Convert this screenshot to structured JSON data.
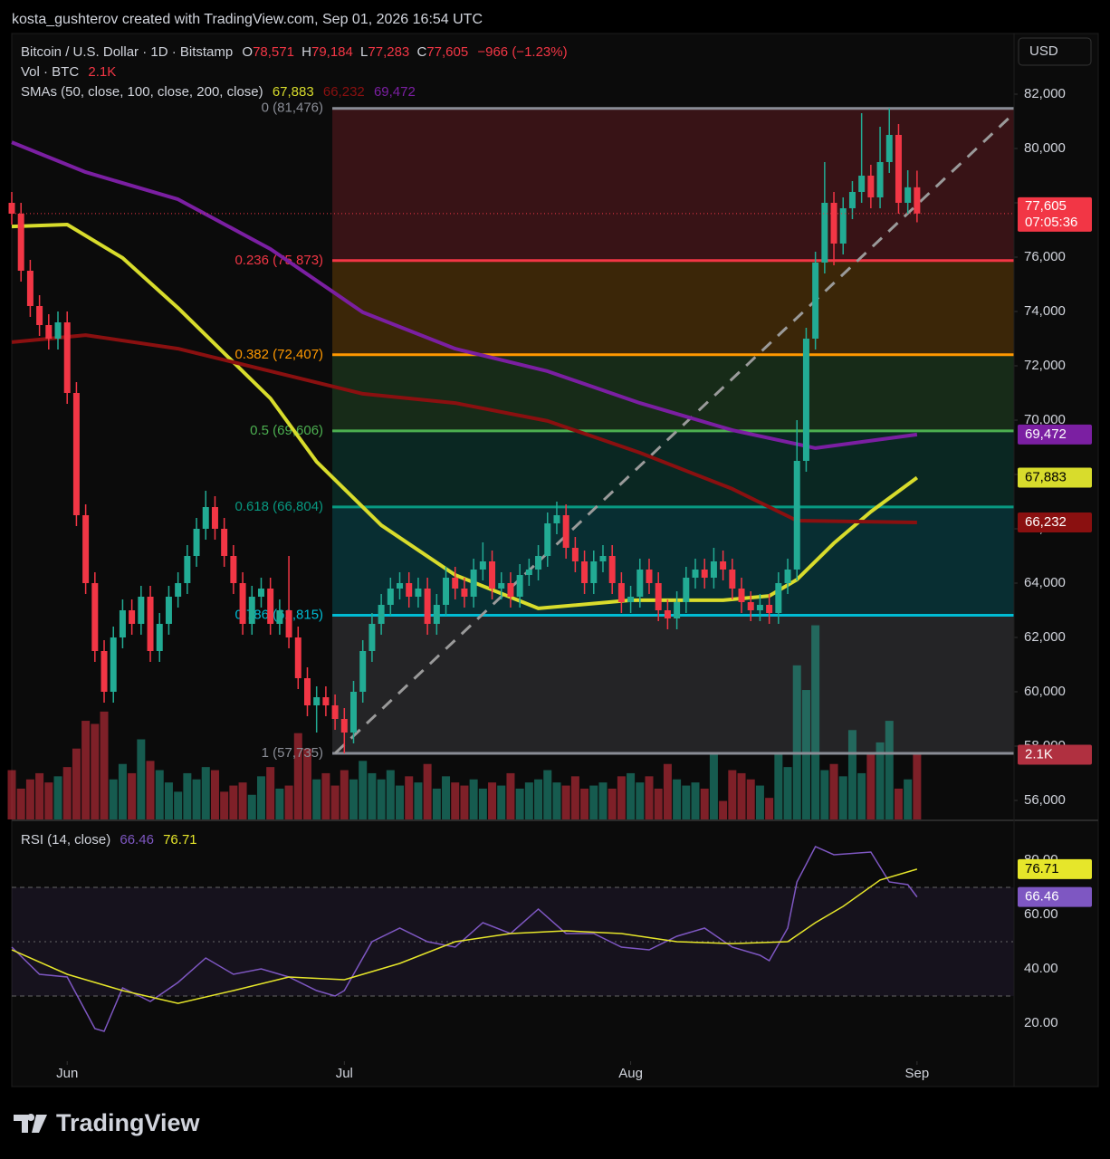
{
  "watermark": "kosta_gushterov created with TradingView.com, Sep 01, 2026 16:54 UTC",
  "brand": "TradingView",
  "chart_data": {
    "type": "candlestick",
    "title": "Bitcoin / U.S. Dollar · 1D · Bitstamp",
    "ohlc_legend": [
      {
        "key": "O",
        "text": "78,571"
      },
      {
        "key": "H",
        "text": "79,184"
      },
      {
        "key": "L",
        "text": "77,283"
      },
      {
        "key": "C",
        "text": "77,605"
      }
    ],
    "change": "−966 (−1.23%)",
    "currency": "USD",
    "countdown": "07:05:36",
    "up_color": "#22ab94",
    "down_color": "#f23645",
    "xlim": [
      0,
      108.5
    ],
    "xticks": [
      {
        "value": 6,
        "label": "Jun"
      },
      {
        "value": 36,
        "label": "Jul"
      },
      {
        "value": 67,
        "label": "Aug"
      },
      {
        "value": 98,
        "label": "Sep"
      }
    ],
    "ylim": [
      55300,
      84233
    ],
    "yticks": [
      {
        "value": 56000,
        "label": "56,000"
      },
      {
        "value": 58000,
        "label": "58,000"
      },
      {
        "value": 60000,
        "label": "60,000"
      },
      {
        "value": 62000,
        "label": "62,000"
      },
      {
        "value": 64000,
        "label": "64,000"
      },
      {
        "value": 66000,
        "label": "66,000"
      },
      {
        "value": 68000,
        "label": "68,000"
      },
      {
        "value": 70000,
        "label": "70,000"
      },
      {
        "value": 72000,
        "label": "72,000"
      },
      {
        "value": 74000,
        "label": "74,000"
      },
      {
        "value": 76000,
        "label": "76,000"
      },
      {
        "value": 78000,
        "label": "78,000"
      },
      {
        "value": 80000,
        "label": "80,000"
      },
      {
        "value": 82000,
        "label": "82,000"
      }
    ],
    "candles": [
      [
        78000,
        78400,
        77200,
        77600
      ],
      [
        77600,
        78000,
        75100,
        75500
      ],
      [
        75500,
        75900,
        73800,
        74200
      ],
      [
        74200,
        74600,
        73100,
        73500
      ],
      [
        73500,
        73900,
        72600,
        73000
      ],
      [
        73000,
        74000,
        72600,
        73600
      ],
      [
        73600,
        74000,
        70600,
        71000
      ],
      [
        71000,
        71400,
        66100,
        66500
      ],
      [
        66500,
        66900,
        63600,
        64000
      ],
      [
        64000,
        64400,
        61100,
        61500
      ],
      [
        61500,
        61900,
        59600,
        60000
      ],
      [
        60000,
        62400,
        59600,
        62000
      ],
      [
        62000,
        63400,
        61600,
        63000
      ],
      [
        63000,
        63400,
        62100,
        62500
      ],
      [
        62500,
        63900,
        62100,
        63500
      ],
      [
        63500,
        63900,
        61100,
        61500
      ],
      [
        61500,
        62900,
        61100,
        62500
      ],
      [
        62500,
        63900,
        62100,
        63500
      ],
      [
        63500,
        64400,
        63100,
        64000
      ],
      [
        64000,
        65400,
        63600,
        65000
      ],
      [
        65000,
        66400,
        64600,
        66000
      ],
      [
        66000,
        67400,
        65600,
        66800
      ],
      [
        66800,
        67200,
        65600,
        66000
      ],
      [
        66000,
        66400,
        64600,
        65000
      ],
      [
        65000,
        65400,
        63600,
        64000
      ],
      [
        64000,
        64400,
        62100,
        62500
      ],
      [
        62500,
        63900,
        62100,
        63500
      ],
      [
        63500,
        64200,
        63100,
        63800
      ],
      [
        63800,
        64200,
        62100,
        62500
      ],
      [
        62500,
        63400,
        62100,
        63000
      ],
      [
        63000,
        65000,
        61600,
        62000
      ],
      [
        62000,
        62400,
        60100,
        60500
      ],
      [
        60500,
        60900,
        59100,
        59500
      ],
      [
        59500,
        60200,
        58500,
        59800
      ],
      [
        59800,
        60200,
        59100,
        59500
      ],
      [
        59500,
        59900,
        58600,
        59000
      ],
      [
        59000,
        59400,
        57735,
        58500
      ],
      [
        58500,
        60400,
        58100,
        60000
      ],
      [
        60000,
        61900,
        59600,
        61500
      ],
      [
        61500,
        62900,
        61100,
        62500
      ],
      [
        62500,
        63600,
        62100,
        63200
      ],
      [
        63200,
        64200,
        62800,
        63800
      ],
      [
        63800,
        64400,
        63400,
        64000
      ],
      [
        64000,
        64400,
        63100,
        63500
      ],
      [
        63500,
        64200,
        63100,
        63800
      ],
      [
        63800,
        64200,
        62100,
        62500
      ],
      [
        62500,
        63600,
        62100,
        63200
      ],
      [
        63200,
        64600,
        62800,
        64200
      ],
      [
        64200,
        64600,
        63400,
        63800
      ],
      [
        63800,
        64200,
        63100,
        63500
      ],
      [
        63500,
        64900,
        63100,
        64500
      ],
      [
        64500,
        65500,
        64100,
        64800
      ],
      [
        64800,
        65200,
        63400,
        63800
      ],
      [
        63800,
        64400,
        63400,
        64000
      ],
      [
        64000,
        64400,
        63100,
        63500
      ],
      [
        63500,
        64700,
        63100,
        64300
      ],
      [
        64300,
        64900,
        63900,
        64500
      ],
      [
        64500,
        65400,
        64100,
        65000
      ],
      [
        65000,
        66600,
        64600,
        66200
      ],
      [
        66200,
        67000,
        65800,
        66500
      ],
      [
        66500,
        66900,
        64900,
        65300
      ],
      [
        65300,
        65700,
        64400,
        64800
      ],
      [
        64800,
        65200,
        63600,
        64000
      ],
      [
        64000,
        65200,
        63600,
        64800
      ],
      [
        64800,
        65400,
        64400,
        65000
      ],
      [
        65000,
        65400,
        63600,
        64000
      ],
      [
        64000,
        64400,
        62900,
        63300
      ],
      [
        63300,
        63900,
        62900,
        63500
      ],
      [
        63500,
        64900,
        63100,
        64500
      ],
      [
        64500,
        64900,
        63600,
        64000
      ],
      [
        64000,
        64400,
        62600,
        63000
      ],
      [
        63000,
        63400,
        62300,
        62700
      ],
      [
        62700,
        63700,
        62300,
        63300
      ],
      [
        63300,
        64600,
        62900,
        64200
      ],
      [
        64200,
        64900,
        63800,
        64500
      ],
      [
        64500,
        64900,
        63800,
        64200
      ],
      [
        64200,
        65300,
        63800,
        64800
      ],
      [
        64800,
        65200,
        64100,
        64500
      ],
      [
        64500,
        64900,
        63400,
        63800
      ],
      [
        63800,
        64200,
        62900,
        63300
      ],
      [
        63300,
        63700,
        62600,
        63000
      ],
      [
        63000,
        63600,
        62600,
        63200
      ],
      [
        63200,
        63600,
        62500,
        62900
      ],
      [
        62900,
        64400,
        62500,
        64000
      ],
      [
        64000,
        64900,
        63600,
        64500
      ],
      [
        64500,
        70000,
        64100,
        68500
      ],
      [
        68500,
        73400,
        68100,
        73000
      ],
      [
        73000,
        76200,
        72600,
        75800
      ],
      [
        75800,
        79500,
        75400,
        78000
      ],
      [
        78000,
        78400,
        75700,
        76500
      ],
      [
        76500,
        78200,
        76100,
        77800
      ],
      [
        77800,
        78800,
        77400,
        78400
      ],
      [
        78400,
        81300,
        78000,
        79000
      ],
      [
        79000,
        79400,
        77800,
        78200
      ],
      [
        78200,
        80800,
        77800,
        79500
      ],
      [
        79500,
        81476,
        79100,
        80500
      ],
      [
        80500,
        80900,
        77600,
        78000
      ],
      [
        78000,
        79200,
        77600,
        78571
      ],
      [
        78571,
        79184,
        77283,
        77605
      ]
    ],
    "volume": {
      "name": "Vol · BTC",
      "last_label": "2.1K",
      "ylim": [
        0,
        25500
      ],
      "values": [
        1600,
        1000,
        1300,
        1500,
        1200,
        1400,
        1700,
        2300,
        3200,
        3100,
        3500,
        1300,
        1800,
        1500,
        2600,
        1900,
        1600,
        1200,
        900,
        1500,
        1300,
        1700,
        1600,
        900,
        1100,
        1200,
        800,
        1400,
        1700,
        1000,
        1100,
        2800,
        2300,
        1300,
        1500,
        1100,
        1600,
        1300,
        1900,
        1500,
        1300,
        1600,
        1100,
        1400,
        1200,
        1800,
        1000,
        1400,
        1200,
        1100,
        1300,
        1000,
        1200,
        1100,
        1500,
        1000,
        1200,
        1300,
        1600,
        1200,
        1100,
        1400,
        1000,
        1100,
        1200,
        1000,
        1400,
        1500,
        1200,
        1400,
        1000,
        1800,
        1300,
        1100,
        1200,
        1000,
        2100,
        600,
        1600,
        1500,
        1300,
        1100,
        700,
        2100,
        1700,
        5000,
        4200,
        6300,
        1600,
        1800,
        1400,
        2900,
        1500,
        2100,
        2500,
        3200,
        1000,
        1300,
        2100
      ]
    },
    "sma": {
      "name": "SMAs (50, close, 100, close, 200, close)",
      "series": [
        {
          "last_label": "67,883",
          "color": "#d8dc2c",
          "badge_text": "#000000",
          "x": [
            0,
            6,
            12,
            18,
            24,
            28,
            33,
            40,
            48,
            57,
            67,
            77,
            82,
            85,
            89,
            93,
            98
          ],
          "values": [
            77130,
            77200,
            75970,
            74130,
            72130,
            70800,
            68470,
            66130,
            64300,
            63070,
            63370,
            63370,
            63530,
            64130,
            65470,
            66630,
            67883
          ]
        },
        {
          "last_label": "66,232",
          "color": "#8a1010",
          "badge_text": "#ffffff",
          "x": [
            0,
            8,
            18,
            28,
            38,
            48,
            58,
            68,
            78,
            85,
            98
          ],
          "values": [
            72870,
            73130,
            72630,
            71800,
            70970,
            70630,
            69970,
            68800,
            67470,
            66300,
            66232
          ]
        },
        {
          "last_label": "69,472",
          "color": "#7b1fa2",
          "badge_text": "#ffffff",
          "x": [
            0,
            8,
            18,
            28,
            38,
            48,
            58,
            68,
            78,
            87,
            98
          ],
          "values": [
            80230,
            79130,
            78130,
            76300,
            73970,
            72630,
            71800,
            70630,
            69630,
            68970,
            69472
          ]
        }
      ]
    },
    "fib": {
      "start_x": 34.7,
      "end_x": 108.5,
      "levels": [
        {
          "label": "0 (81,476)",
          "price": 81476,
          "color": "#8a8d96"
        },
        {
          "label": "0.236 (75,873)",
          "price": 75873,
          "color": "#f23645"
        },
        {
          "label": "0.382 (72,407)",
          "price": 72407,
          "color": "#ff9800"
        },
        {
          "label": "0.5 (69,606)",
          "price": 69606,
          "color": "#4caf50"
        },
        {
          "label": "0.618 (66,804)",
          "price": 66804,
          "color": "#089981"
        },
        {
          "label": "0.786 (62,815)",
          "price": 62815,
          "color": "#00bcd4"
        },
        {
          "label": "1 (57,735)",
          "price": 57735,
          "color": "#8a8d96"
        }
      ]
    },
    "trend_line": {
      "x": [
        35,
        108.5
      ],
      "values": [
        57735,
        81300
      ]
    },
    "rsi": {
      "name": "RSI (14, close)",
      "ylim": [
        6,
        94.33
      ],
      "yticks": [
        {
          "value": 20,
          "label": "20.00"
        },
        {
          "value": 40,
          "label": "40.00"
        },
        {
          "value": 60,
          "label": "60.00"
        },
        {
          "value": 80,
          "label": "80.00"
        }
      ],
      "levels": [
        30,
        50,
        70
      ],
      "series": [
        {
          "last_label": "66.46",
          "color": "#7e57c2",
          "x": [
            0,
            3,
            6,
            9,
            10,
            12,
            15,
            18,
            21,
            24,
            27,
            30,
            33,
            35,
            36,
            39,
            42,
            45,
            48,
            51,
            54,
            57,
            60,
            63,
            66,
            69,
            72,
            75,
            78,
            81,
            82,
            84,
            85,
            87,
            89,
            93,
            95,
            97,
            98
          ],
          "values": [
            48,
            38,
            37,
            18,
            17,
            33,
            28,
            35,
            44,
            38,
            40,
            37,
            32,
            30,
            32,
            50,
            55,
            50,
            48,
            57,
            53,
            62,
            53,
            53,
            48,
            47,
            52,
            55,
            48,
            45,
            43,
            55,
            72,
            85,
            82,
            83,
            72,
            71,
            66.46
          ]
        },
        {
          "last_label": "76.71",
          "color": "#e6e62a",
          "x": [
            0,
            6,
            12,
            18,
            24,
            30,
            36,
            42,
            48,
            54,
            60,
            66,
            72,
            78,
            84,
            87,
            90,
            94,
            98
          ],
          "values": [
            47,
            38,
            32,
            27.3,
            32,
            37,
            36,
            42,
            50,
            53,
            54,
            53,
            50,
            49.3,
            50,
            57,
            63,
            72.7,
            76.71
          ]
        }
      ]
    }
  }
}
